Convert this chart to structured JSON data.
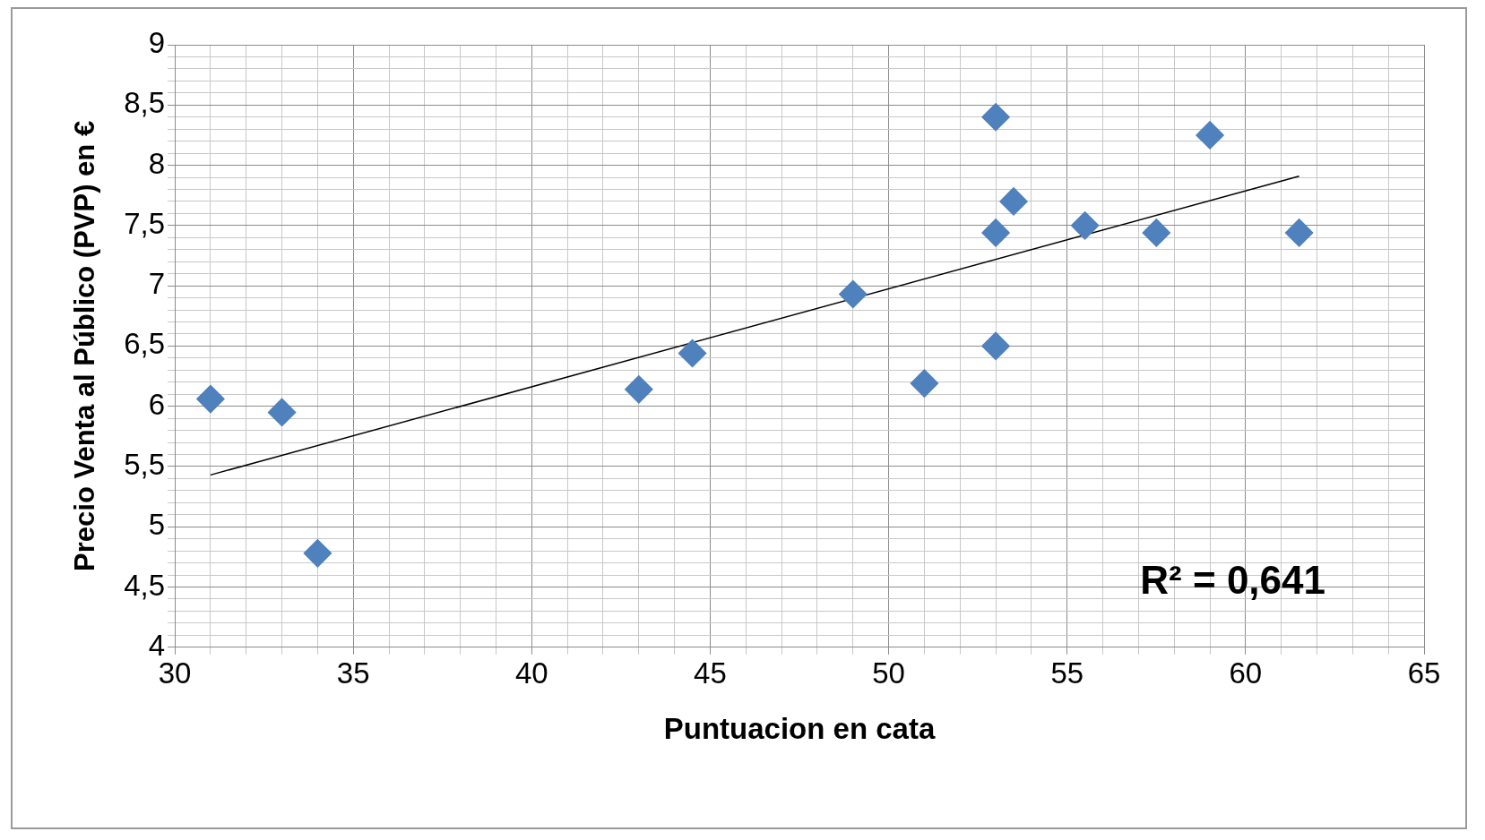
{
  "chart_data": {
    "type": "scatter",
    "xlabel": "Puntuacion en cata",
    "ylabel": "Precio Venta al Público (PVP) en €",
    "annotations": [
      "R² = 0,641"
    ],
    "series": [
      {
        "type": "scatter",
        "color": "#4f81bd",
        "marker": "diamond",
        "x": [
          31,
          33,
          34,
          43,
          44.5,
          49,
          51,
          53,
          53,
          53,
          53.5,
          55.5,
          57.5,
          59,
          61.5
        ],
        "values": [
          6.06,
          5.95,
          4.78,
          6.14,
          6.44,
          6.93,
          6.19,
          8.4,
          7.44,
          6.5,
          7.7,
          7.5,
          7.44,
          8.25,
          7.44
        ]
      },
      {
        "type": "line",
        "color": "#000000",
        "marker": "none",
        "x": [
          31,
          61.5
        ],
        "values": [
          5.43,
          7.91
        ]
      }
    ],
    "xlim": [
      30,
      65
    ],
    "xticks": [
      30,
      {
        "value": 31,
        "label": null
      },
      {
        "value": 32,
        "label": null
      },
      {
        "value": 33,
        "label": null
      },
      {
        "value": 34,
        "label": null
      },
      35,
      {
        "value": 36,
        "label": null
      },
      {
        "value": 37,
        "label": null
      },
      {
        "value": 38,
        "label": null
      },
      {
        "value": 39,
        "label": null
      },
      40,
      {
        "value": 41,
        "label": null
      },
      {
        "value": 42,
        "label": null
      },
      {
        "value": 43,
        "label": null
      },
      {
        "value": 44,
        "label": null
      },
      45,
      {
        "value": 46,
        "label": null
      },
      {
        "value": 47,
        "label": null
      },
      {
        "value": 48,
        "label": null
      },
      {
        "value": 49,
        "label": null
      },
      50,
      {
        "value": 51,
        "label": null
      },
      {
        "value": 52,
        "label": null
      },
      {
        "value": 53,
        "label": null
      },
      {
        "value": 54,
        "label": null
      },
      55,
      {
        "value": 56,
        "label": null
      },
      {
        "value": 57,
        "label": null
      },
      {
        "value": 58,
        "label": null
      },
      {
        "value": 59,
        "label": null
      },
      60,
      {
        "value": 61,
        "label": null
      },
      {
        "value": 62,
        "label": null
      },
      {
        "value": 63,
        "label": null
      },
      {
        "value": 64,
        "label": null
      },
      65
    ],
    "ylim": [
      4,
      9
    ],
    "yticks": [
      4,
      {
        "value": 4.1,
        "label": null
      },
      {
        "value": 4.2,
        "label": null
      },
      {
        "value": 4.3,
        "label": null
      },
      {
        "value": 4.4,
        "label": null
      },
      {
        "value": 4.5,
        "label": "4,5"
      },
      {
        "value": 4.6,
        "label": null
      },
      {
        "value": 4.7,
        "label": null
      },
      {
        "value": 4.8,
        "label": null
      },
      {
        "value": 4.9,
        "label": null
      },
      5,
      {
        "value": 5.1,
        "label": null
      },
      {
        "value": 5.2,
        "label": null
      },
      {
        "value": 5.3,
        "label": null
      },
      {
        "value": 5.4,
        "label": null
      },
      {
        "value": 5.5,
        "label": "5,5"
      },
      {
        "value": 5.6,
        "label": null
      },
      {
        "value": 5.7,
        "label": null
      },
      {
        "value": 5.8,
        "label": null
      },
      {
        "value": 5.9,
        "label": null
      },
      6,
      {
        "value": 6.1,
        "label": null
      },
      {
        "value": 6.2,
        "label": null
      },
      {
        "value": 6.3,
        "label": null
      },
      {
        "value": 6.4,
        "label": null
      },
      {
        "value": 6.5,
        "label": "6,5"
      },
      {
        "value": 6.6,
        "label": null
      },
      {
        "value": 6.7,
        "label": null
      },
      {
        "value": 6.8,
        "label": null
      },
      {
        "value": 6.9,
        "label": null
      },
      7,
      {
        "value": 7.1,
        "label": null
      },
      {
        "value": 7.2,
        "label": null
      },
      {
        "value": 7.3,
        "label": null
      },
      {
        "value": 7.4,
        "label": null
      },
      {
        "value": 7.5,
        "label": "7,5"
      },
      {
        "value": 7.6,
        "label": null
      },
      {
        "value": 7.7,
        "label": null
      },
      {
        "value": 7.8,
        "label": null
      },
      {
        "value": 7.9,
        "label": null
      },
      8,
      {
        "value": 8.1,
        "label": null
      },
      {
        "value": 8.2,
        "label": null
      },
      {
        "value": 8.3,
        "label": null
      },
      {
        "value": 8.4,
        "label": null
      },
      {
        "value": 8.5,
        "label": "8,5"
      },
      {
        "value": 8.6,
        "label": null
      },
      {
        "value": 8.7,
        "label": null
      },
      {
        "value": 8.8,
        "label": null
      },
      {
        "value": 8.9,
        "label": null
      },
      9
    ],
    "grid": true,
    "legend": false
  }
}
